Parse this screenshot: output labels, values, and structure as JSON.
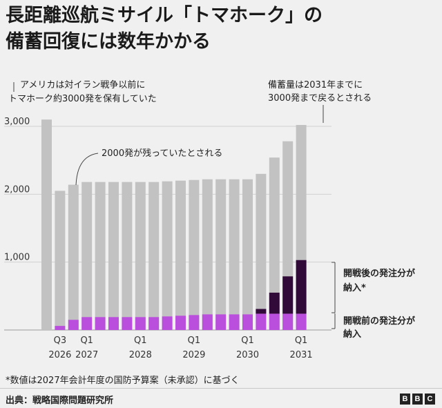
{
  "title": {
    "line1": "長距離巡航ミサイル「トマホーク」の",
    "line2": "備蓄回復には数年かかる"
  },
  "annotations": {
    "prewar_line1": "アメリカは対イラン戦争以前に",
    "prewar_line2": "トマホーク約3000発を保有していた",
    "remaining": "2000発が残っていたとされる",
    "restore_line1": "備蓄量は2031年までに",
    "restore_line2": "3000発まで戻るとされる"
  },
  "legend": {
    "postwar_line1": "開戦後の発注分が",
    "postwar_line2": "納入*",
    "prewar_line1": "開戦前の発注分が",
    "prewar_line2": "納入"
  },
  "footnote": "*数値は2027年会計年度の国防予算案（未承認）に基づく",
  "source": "出典：戦略国際問題研究所",
  "logo": [
    "B",
    "B",
    "C"
  ],
  "colors": {
    "stock": "#c2c2c2",
    "prewar_orders": "#b94fdc",
    "postwar_orders": "#320a3a",
    "grid": "#d0d0d0",
    "axis_text": "#333333",
    "background": "#f0f0f0"
  },
  "chart_data": {
    "type": "bar",
    "stacked": true,
    "y_ticks": [
      "3,000",
      "2,000",
      "1,000"
    ],
    "y_tick_values": [
      3000,
      2000,
      1000
    ],
    "ylim": [
      0,
      3000
    ],
    "x_tick_labels": [
      {
        "quarter": "Q3",
        "year": "2026",
        "bar_index": 1
      },
      {
        "quarter": "Q1",
        "year": "2027",
        "bar_index": 3
      },
      {
        "quarter": "Q1",
        "year": "2028",
        "bar_index": 7
      },
      {
        "quarter": "Q1",
        "year": "2029",
        "bar_index": 11
      },
      {
        "quarter": "Q1",
        "year": "2030",
        "bar_index": 15
      },
      {
        "quarter": "Q1",
        "year": "2031",
        "bar_index": 19
      }
    ],
    "bars": [
      {
        "period": "pre-war",
        "total": 3100,
        "prewar_orders": 0,
        "postwar_orders": 0
      },
      {
        "period": "2026 Q3",
        "total": 2050,
        "prewar_orders": 60,
        "postwar_orders": 0
      },
      {
        "period": "2026 Q4",
        "total": 2140,
        "prewar_orders": 150,
        "postwar_orders": 0
      },
      {
        "period": "2027 Q1",
        "total": 2180,
        "prewar_orders": 190,
        "postwar_orders": 0
      },
      {
        "period": "2027 Q2",
        "total": 2180,
        "prewar_orders": 190,
        "postwar_orders": 0
      },
      {
        "period": "2027 Q3",
        "total": 2180,
        "prewar_orders": 190,
        "postwar_orders": 0
      },
      {
        "period": "2027 Q4",
        "total": 2180,
        "prewar_orders": 190,
        "postwar_orders": 0
      },
      {
        "period": "2028 Q1",
        "total": 2180,
        "prewar_orders": 190,
        "postwar_orders": 0
      },
      {
        "period": "2028 Q2",
        "total": 2180,
        "prewar_orders": 190,
        "postwar_orders": 0
      },
      {
        "period": "2028 Q3",
        "total": 2190,
        "prewar_orders": 200,
        "postwar_orders": 0
      },
      {
        "period": "2028 Q4",
        "total": 2200,
        "prewar_orders": 210,
        "postwar_orders": 0
      },
      {
        "period": "2029 Q1",
        "total": 2210,
        "prewar_orders": 220,
        "postwar_orders": 0
      },
      {
        "period": "2029 Q2",
        "total": 2220,
        "prewar_orders": 230,
        "postwar_orders": 0
      },
      {
        "period": "2029 Q3",
        "total": 2220,
        "prewar_orders": 230,
        "postwar_orders": 0
      },
      {
        "period": "2029 Q4",
        "total": 2220,
        "prewar_orders": 230,
        "postwar_orders": 0
      },
      {
        "period": "2030 Q1",
        "total": 2220,
        "prewar_orders": 230,
        "postwar_orders": 0
      },
      {
        "period": "2030 Q2",
        "total": 2300,
        "prewar_orders": 240,
        "postwar_orders": 70
      },
      {
        "period": "2030 Q3",
        "total": 2540,
        "prewar_orders": 240,
        "postwar_orders": 310
      },
      {
        "period": "2030 Q4",
        "total": 2780,
        "prewar_orders": 240,
        "postwar_orders": 550
      },
      {
        "period": "2031 Q1",
        "total": 3020,
        "prewar_orders": 240,
        "postwar_orders": 790
      }
    ]
  }
}
